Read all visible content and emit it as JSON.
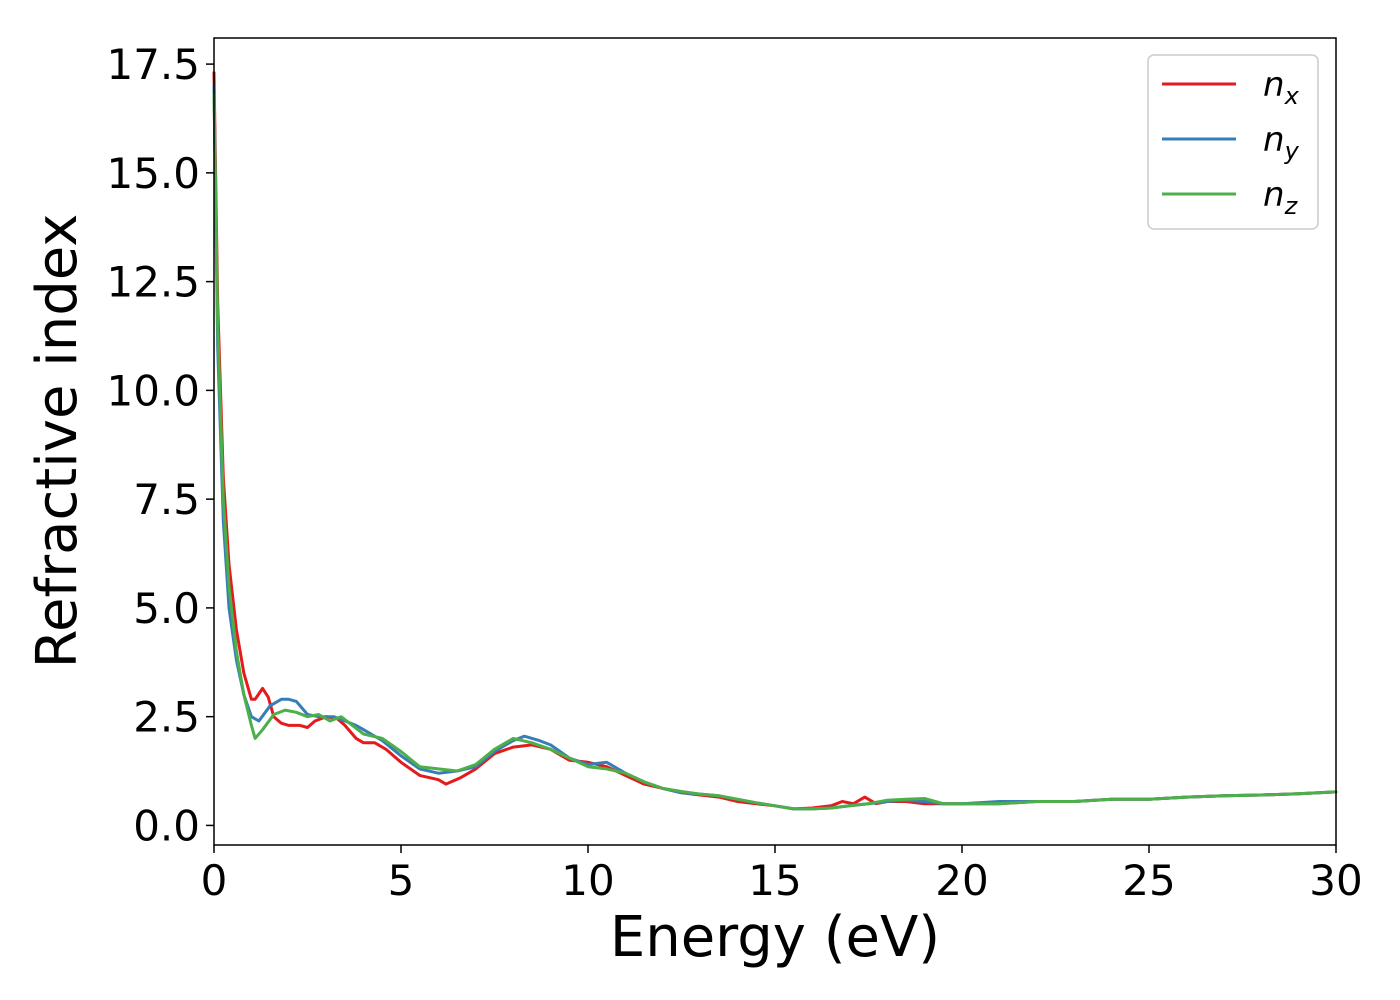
{
  "chart_data": {
    "type": "line",
    "xlabel": "Energy (eV)",
    "ylabel": "Refractive index",
    "xlim": [
      0,
      30
    ],
    "ylim": [
      -0.45,
      18.1
    ],
    "xticks": [
      0,
      5,
      10,
      15,
      20,
      25,
      30
    ],
    "xtick_labels": [
      "0",
      "5",
      "10",
      "15",
      "20",
      "25",
      "30"
    ],
    "yticks": [
      0,
      2.5,
      5,
      7.5,
      10,
      12.5,
      15,
      17.5
    ],
    "ytick_labels": [
      "0.0",
      "2.5",
      "5.0",
      "7.5",
      "10.0",
      "12.5",
      "15.0",
      "17.5"
    ],
    "grid": false,
    "legend_position": "top-right",
    "series": [
      {
        "name": "n",
        "subscript": "x",
        "color": "#e41a1c",
        "x": [
          0,
          0.1,
          0.25,
          0.4,
          0.6,
          0.8,
          1.0,
          1.1,
          1.3,
          1.45,
          1.6,
          1.8,
          2.0,
          2.3,
          2.5,
          2.7,
          3.0,
          3.3,
          3.5,
          3.8,
          4.0,
          4.3,
          4.6,
          5.0,
          5.5,
          6.0,
          6.2,
          6.6,
          7.0,
          7.5,
          8.0,
          8.5,
          9.0,
          9.5,
          10.0,
          10.5,
          11.0,
          11.5,
          12.0,
          12.5,
          13.0,
          13.5,
          14.0,
          14.5,
          15.0,
          15.5,
          16.0,
          16.5,
          16.8,
          17.1,
          17.4,
          17.7,
          18.0,
          18.5,
          19.0,
          19.5,
          20.0,
          21.0,
          22.0,
          23.0,
          24.0,
          25.0,
          26.0,
          27.0,
          28.0,
          29.0,
          30.0
        ],
        "y": [
          17.3,
          12.0,
          8.0,
          6.0,
          4.5,
          3.5,
          2.9,
          2.9,
          3.15,
          2.95,
          2.5,
          2.35,
          2.3,
          2.3,
          2.25,
          2.4,
          2.5,
          2.45,
          2.3,
          2.0,
          1.9,
          1.9,
          1.75,
          1.45,
          1.15,
          1.05,
          0.95,
          1.1,
          1.3,
          1.65,
          1.8,
          1.85,
          1.75,
          1.5,
          1.45,
          1.35,
          1.15,
          0.95,
          0.85,
          0.75,
          0.7,
          0.65,
          0.55,
          0.5,
          0.45,
          0.38,
          0.4,
          0.45,
          0.55,
          0.5,
          0.65,
          0.5,
          0.55,
          0.55,
          0.5,
          0.5,
          0.5,
          0.5,
          0.55,
          0.55,
          0.6,
          0.6,
          0.65,
          0.68,
          0.7,
          0.73,
          0.77
        ]
      },
      {
        "name": "n",
        "subscript": "y",
        "color": "#377eb8",
        "x": [
          0,
          0.1,
          0.25,
          0.4,
          0.6,
          0.8,
          1.0,
          1.2,
          1.5,
          1.8,
          2.0,
          2.2,
          2.5,
          2.8,
          3.2,
          3.5,
          3.8,
          4.0,
          4.5,
          5.0,
          5.5,
          6.0,
          6.5,
          7.0,
          7.5,
          8.0,
          8.3,
          8.7,
          9.0,
          9.5,
          10.0,
          10.5,
          11.0,
          11.5,
          12.0,
          12.5,
          13.0,
          13.5,
          14.0,
          14.5,
          15.0,
          15.5,
          16.0,
          16.5,
          17.0,
          17.5,
          18.0,
          18.5,
          19.0,
          19.5,
          20.0,
          21.0,
          22.0,
          23.0,
          24.0,
          25.0,
          26.0,
          27.0,
          28.0,
          29.0,
          30.0
        ],
        "y": [
          17.0,
          11.0,
          7.0,
          5.0,
          3.8,
          3.0,
          2.5,
          2.4,
          2.75,
          2.9,
          2.9,
          2.85,
          2.55,
          2.5,
          2.5,
          2.4,
          2.3,
          2.2,
          1.95,
          1.6,
          1.3,
          1.2,
          1.25,
          1.35,
          1.7,
          1.95,
          2.05,
          1.95,
          1.85,
          1.55,
          1.4,
          1.45,
          1.2,
          1.0,
          0.85,
          0.75,
          0.72,
          0.68,
          0.6,
          0.52,
          0.45,
          0.38,
          0.38,
          0.4,
          0.45,
          0.5,
          0.55,
          0.58,
          0.55,
          0.5,
          0.5,
          0.55,
          0.55,
          0.55,
          0.6,
          0.6,
          0.65,
          0.68,
          0.7,
          0.73,
          0.77
        ]
      },
      {
        "name": "n",
        "subscript": "z",
        "color": "#4daf4a",
        "x": [
          0,
          0.1,
          0.25,
          0.4,
          0.6,
          0.8,
          1.0,
          1.1,
          1.3,
          1.6,
          1.9,
          2.2,
          2.5,
          2.8,
          3.1,
          3.4,
          3.7,
          4.0,
          4.5,
          5.0,
          5.5,
          6.0,
          6.5,
          7.0,
          7.5,
          8.0,
          8.5,
          9.0,
          9.5,
          10.0,
          10.5,
          11.0,
          11.5,
          12.0,
          12.5,
          13.0,
          13.5,
          14.0,
          14.5,
          15.0,
          15.5,
          16.0,
          16.5,
          17.0,
          17.5,
          18.0,
          18.5,
          19.0,
          19.5,
          20.0,
          21.0,
          22.0,
          23.0,
          24.0,
          25.0,
          26.0,
          27.0,
          28.0,
          29.0,
          30.0
        ],
        "y": [
          16.8,
          11.5,
          7.5,
          5.5,
          4.0,
          3.0,
          2.3,
          2.0,
          2.2,
          2.55,
          2.65,
          2.6,
          2.5,
          2.55,
          2.4,
          2.5,
          2.3,
          2.1,
          2.0,
          1.7,
          1.35,
          1.3,
          1.25,
          1.4,
          1.75,
          2.0,
          1.9,
          1.75,
          1.55,
          1.35,
          1.3,
          1.2,
          1.0,
          0.85,
          0.78,
          0.72,
          0.68,
          0.6,
          0.52,
          0.45,
          0.38,
          0.38,
          0.4,
          0.45,
          0.5,
          0.58,
          0.6,
          0.62,
          0.5,
          0.5,
          0.5,
          0.55,
          0.55,
          0.6,
          0.6,
          0.65,
          0.68,
          0.7,
          0.73,
          0.77
        ]
      }
    ]
  }
}
